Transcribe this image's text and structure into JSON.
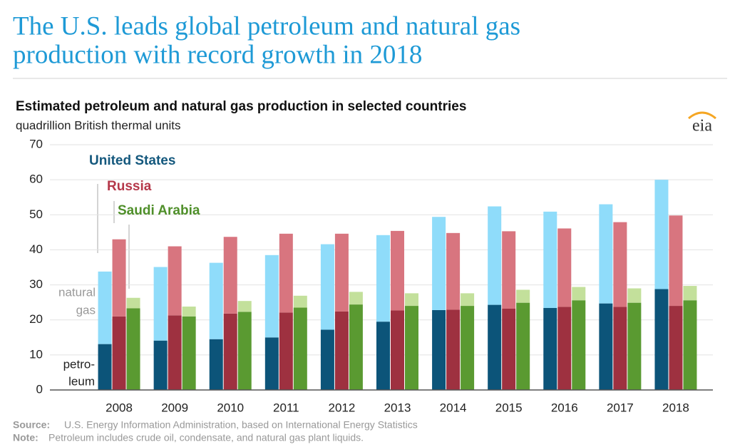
{
  "header": {
    "title": [
      "The U.S. leads global petroleum and natural gas",
      "production with record growth in 2018"
    ]
  },
  "logo": "eia",
  "chart_data": {
    "type": "grouped-stacked-bar",
    "title": "Estimated petroleum and natural gas production in selected countries",
    "subtitle": "quadrillion British thermal units",
    "categories": [
      "2008",
      "2009",
      "2010",
      "2011",
      "2012",
      "2013",
      "2014",
      "2015",
      "2016",
      "2017",
      "2018"
    ],
    "ylim": [
      0,
      70
    ],
    "yticks": [
      0,
      10,
      20,
      30,
      40,
      50,
      60,
      70
    ],
    "grid": true,
    "segment_labels": {
      "petroleum": [
        "petro-",
        "leum"
      ],
      "natural_gas": [
        "natural",
        "gas"
      ]
    },
    "series": [
      {
        "name": "United States",
        "color": "#14587d",
        "colors": [
          "#0c5479",
          "#8fdcfa"
        ],
        "petroleum": [
          13.1,
          14.1,
          14.5,
          15.0,
          17.2,
          19.5,
          22.8,
          24.3,
          23.4,
          24.7,
          28.8
        ],
        "natural_gas": [
          20.7,
          21.0,
          21.8,
          23.5,
          24.4,
          24.7,
          26.6,
          28.1,
          27.5,
          28.3,
          31.2
        ]
      },
      {
        "name": "Russia",
        "color": "#b5384a",
        "colors": [
          "#9e3140",
          "#d8757f"
        ],
        "petroleum": [
          21.0,
          21.3,
          21.8,
          22.1,
          22.4,
          22.7,
          22.9,
          23.2,
          23.7,
          23.7,
          24.0
        ],
        "natural_gas": [
          22.0,
          19.7,
          21.9,
          22.5,
          22.2,
          22.7,
          21.9,
          22.1,
          22.4,
          24.2,
          25.8
        ]
      },
      {
        "name": "Saudi Arabia",
        "color": "#4f8f2a",
        "colors": [
          "#5a9a31",
          "#c3e09b"
        ],
        "petroleum": [
          23.3,
          21.0,
          22.3,
          23.5,
          24.4,
          24.0,
          24.0,
          24.9,
          25.6,
          24.9,
          25.6
        ],
        "natural_gas": [
          3.0,
          2.8,
          3.1,
          3.4,
          3.6,
          3.6,
          3.6,
          3.7,
          3.8,
          4.1,
          4.1
        ]
      }
    ],
    "source_label": "Source:",
    "source": "U.S. Energy Information Administration, based on International Energy Statistics",
    "note_label": "Note:",
    "note": "Petroleum includes crude oil, condensate, and natural gas plant liquids."
  }
}
